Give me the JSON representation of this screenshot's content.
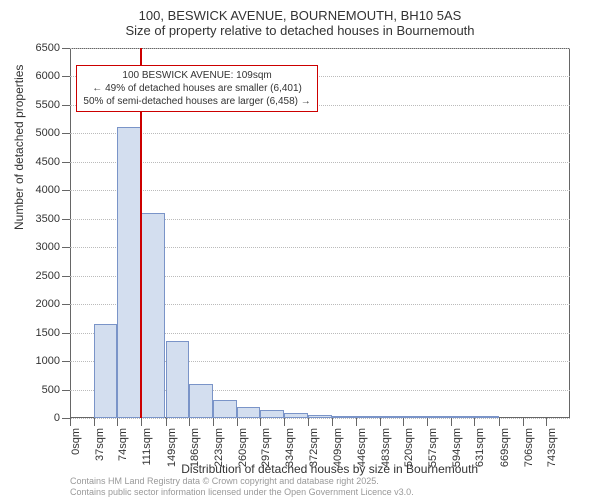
{
  "title": {
    "main": "100, BESWICK AVENUE, BOURNEMOUTH, BH10 5AS",
    "sub": "Size of property relative to detached houses in Bournemouth",
    "fontsize": 13
  },
  "ylabel": "Number of detached properties",
  "xlabel": "Distribution of detached houses by size in Bournemouth",
  "label_fontsize": 12,
  "chart": {
    "type": "histogram",
    "ylim": [
      0,
      6500
    ],
    "yticks": [
      0,
      500,
      1000,
      1500,
      2000,
      2500,
      3000,
      3500,
      4000,
      4500,
      5000,
      5500,
      6000,
      6500
    ],
    "xticks": [
      0,
      37,
      74,
      111,
      149,
      186,
      223,
      260,
      297,
      334,
      372,
      409,
      446,
      483,
      520,
      557,
      594,
      631,
      669,
      706,
      743
    ],
    "xtick_unit": "sqm",
    "xmax": 780,
    "bar_color": "#d3deef",
    "bar_border_color": "#7a94c8",
    "grid_color": "#bbbbbb",
    "background_color": "#ffffff",
    "tick_fontsize": 11,
    "bars": [
      {
        "x": 37,
        "width": 37,
        "value": 1650
      },
      {
        "x": 74,
        "width": 37,
        "value": 5120
      },
      {
        "x": 111,
        "width": 38,
        "value": 3600
      },
      {
        "x": 149,
        "width": 37,
        "value": 1350
      },
      {
        "x": 186,
        "width": 37,
        "value": 600
      },
      {
        "x": 223,
        "width": 37,
        "value": 310
      },
      {
        "x": 260,
        "width": 37,
        "value": 200
      },
      {
        "x": 297,
        "width": 37,
        "value": 140
      },
      {
        "x": 334,
        "width": 38,
        "value": 90
      },
      {
        "x": 372,
        "width": 37,
        "value": 60
      },
      {
        "x": 409,
        "width": 37,
        "value": 40
      },
      {
        "x": 446,
        "width": 37,
        "value": 30
      },
      {
        "x": 483,
        "width": 37,
        "value": 20
      },
      {
        "x": 520,
        "width": 37,
        "value": 10
      },
      {
        "x": 557,
        "width": 37,
        "value": 10
      },
      {
        "x": 594,
        "width": 37,
        "value": 8
      },
      {
        "x": 631,
        "width": 38,
        "value": 5
      }
    ],
    "marker": {
      "x": 109,
      "color": "#cc0000"
    },
    "annotation": {
      "lines": [
        "100 BESWICK AVENUE: 109sqm",
        "← 49% of detached houses are smaller (6,401)",
        "50% of semi-detached houses are larger (6,458) →"
      ],
      "border_color": "#cc0000",
      "top_value": 6200,
      "left_x": 10
    }
  },
  "footer": {
    "line1": "Contains HM Land Registry data © Crown copyright and database right 2025.",
    "line2": "Contains public sector information licensed under the Open Government Licence v3.0."
  }
}
